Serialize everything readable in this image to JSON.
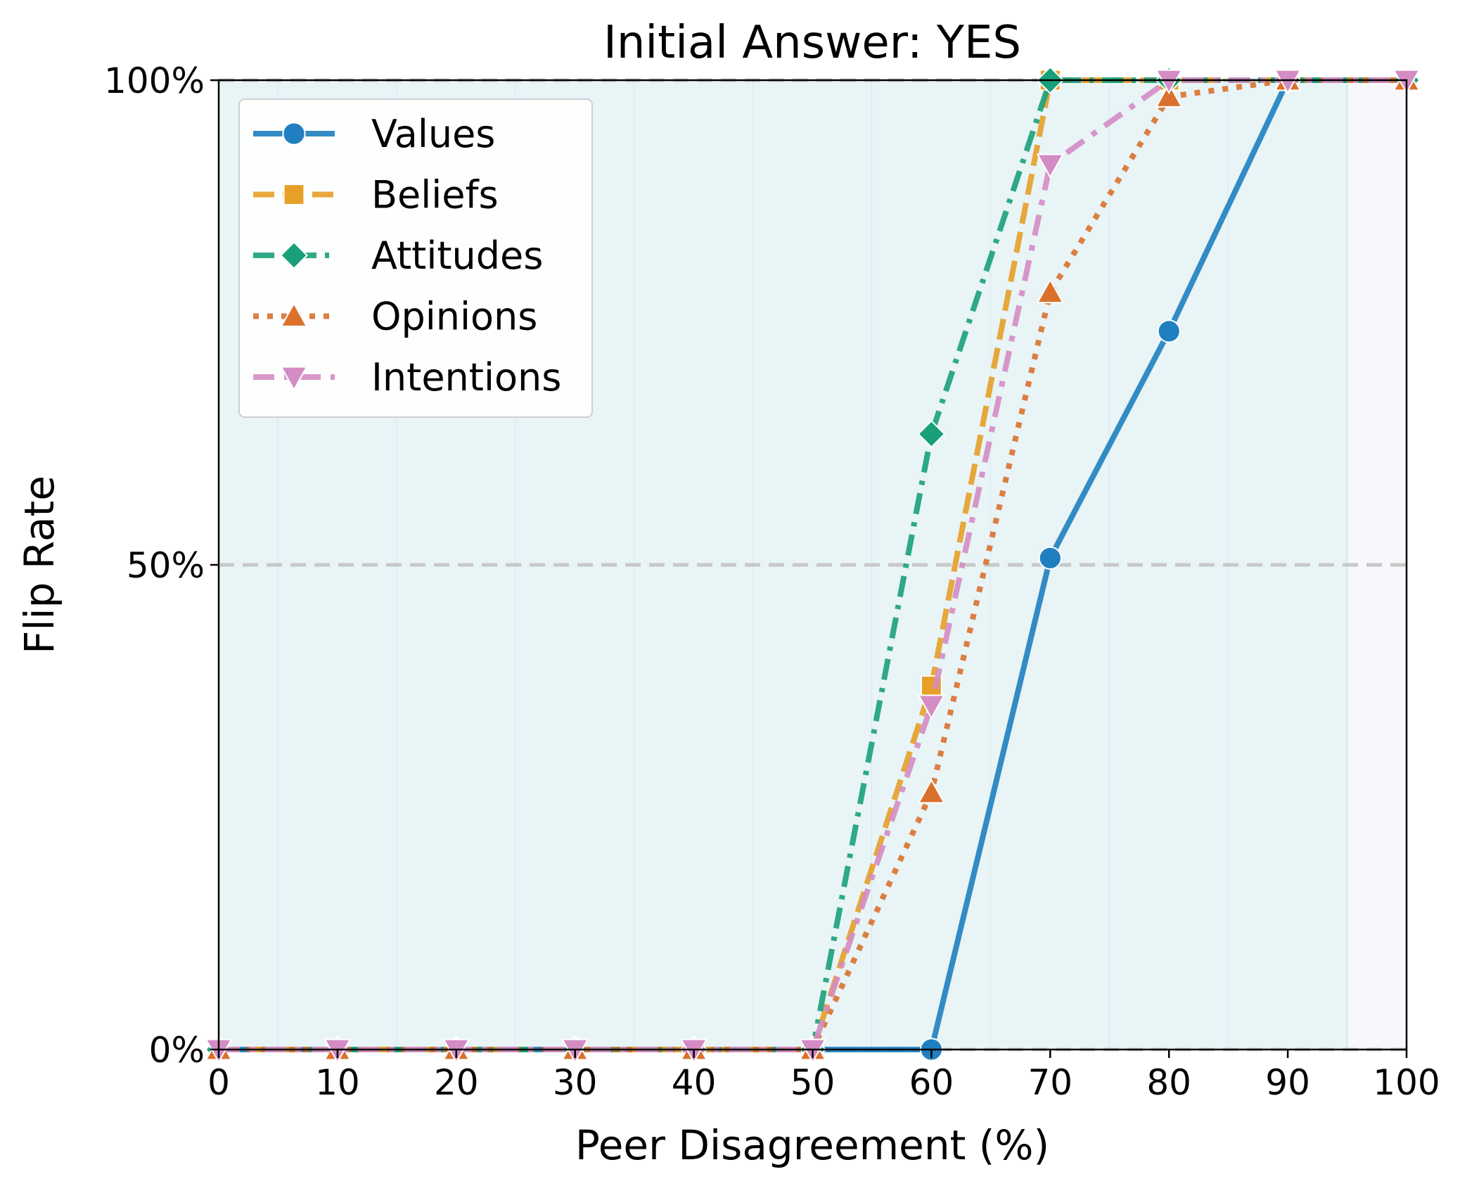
{
  "chart_data": {
    "type": "line",
    "title": "Initial Answer: YES",
    "xlabel": "Peer Disagreement (%)",
    "ylabel": "Flip Rate",
    "xlim": [
      0,
      100
    ],
    "ylim": [
      0,
      100
    ],
    "x": [
      0,
      10,
      20,
      30,
      40,
      50,
      60,
      70,
      80,
      90,
      100
    ],
    "x_tick_labels": [
      "0",
      "10",
      "20",
      "30",
      "40",
      "50",
      "60",
      "70",
      "80",
      "90",
      "100"
    ],
    "y_ticks": [
      0,
      50,
      100
    ],
    "y_tick_labels": [
      "0%",
      "50%",
      "100%"
    ],
    "reference_lines": [
      0,
      50,
      100
    ],
    "grid": false,
    "legend_position": "upper-left",
    "series": [
      {
        "name": "Values",
        "color": "#1f7fc0",
        "marker": "circle",
        "line_style": "solid",
        "values": [
          0,
          0,
          0,
          0,
          0,
          0,
          0,
          50.7,
          74.1,
          100,
          100
        ]
      },
      {
        "name": "Beliefs",
        "color": "#e69f27",
        "marker": "square",
        "line_style": "dashed",
        "values": [
          0,
          0,
          0,
          0,
          0,
          0,
          37.5,
          100,
          100,
          100,
          100
        ]
      },
      {
        "name": "Attitudes",
        "color": "#19a07a",
        "marker": "diamond",
        "line_style": "dashdot",
        "values": [
          0,
          0,
          0,
          0,
          0,
          0,
          63.5,
          100,
          100,
          100,
          100
        ]
      },
      {
        "name": "Opinions",
        "color": "#d9712c",
        "marker": "triangle-up",
        "line_style": "dotted",
        "values": [
          0,
          0,
          0,
          0,
          0,
          0,
          26.5,
          78.1,
          98.3,
          100,
          100
        ]
      },
      {
        "name": "Intentions",
        "color": "#d48cc4",
        "marker": "triangle-down",
        "line_style": "longdot",
        "values": [
          0,
          0,
          0,
          0,
          0,
          0,
          35.5,
          91.3,
          100,
          100,
          100
        ]
      }
    ]
  }
}
